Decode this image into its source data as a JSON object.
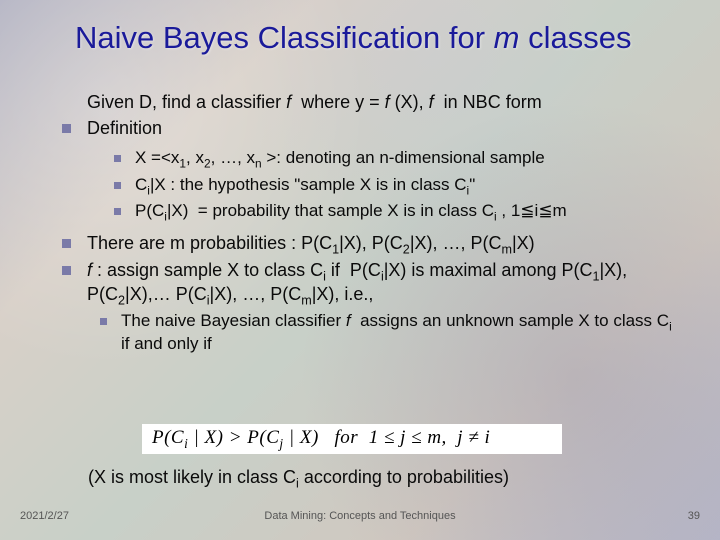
{
  "title_prefix": "Naive Bayes Classification for ",
  "title_m": "m",
  "title_suffix": " classes",
  "intro": "Given D, find a classifier <span class=\"ital\">f</span> &nbsp;where y = <span class=\"ital\">f</span> (X), <span class=\"ital\">f</span> &nbsp;in NBC form",
  "b1": "Definition",
  "sub1": "X =&lt;x<sub>1</sub>, x<sub>2</sub>, …, x<sub>n</sub> &gt;: denoting an n-dimensional sample",
  "sub2": "C<sub>i</sub>|X : the hypothesis \"sample X is in class C<sub>i</sub>\"",
  "sub3": "P(C<sub>i</sub>|X) &nbsp;= probability that sample X is in class C<sub>i</sub> , 1≦i≦m",
  "b2": "There are m probabilities : P(C<sub>1</sub>|X), P(C<sub>2</sub>|X), …, P(C<sub>m</sub>|X)",
  "b3": "<span class=\"ital\">f</span> : assign sample X to class C<sub>i</sub> if &nbsp;P(C<sub>i</sub>|X) is maximal among P(C<sub>1</sub>|X), P(C<sub>2</sub>|X),… P(C<sub>i</sub>|X), …, P(C<sub>m</sub>|X), i.e.,",
  "sub4": "The naive Bayesian classifier <span class=\"ital\">f</span>&nbsp; assigns an unknown sample X to class C<sub>i</sub> if and only if",
  "formula": "P(C<sub>i</sub> | X) > P(C<sub>j</sub> | X) &nbsp; for &nbsp;1 ≤ j ≤ m, &nbsp;j ≠ i",
  "closing": "(X is most likely in class C<sub>i</sub> according to probabilities)",
  "footer_date": "2021/2/27",
  "footer_center": "Data Mining: Concepts and Techniques",
  "footer_page": "39",
  "colors": {
    "title": "#1a1a9a",
    "bullet_square": "#7a7aa8",
    "body_text": "#0a0a0a",
    "formula_bg": "#ffffff",
    "footer_text": "#555555"
  }
}
